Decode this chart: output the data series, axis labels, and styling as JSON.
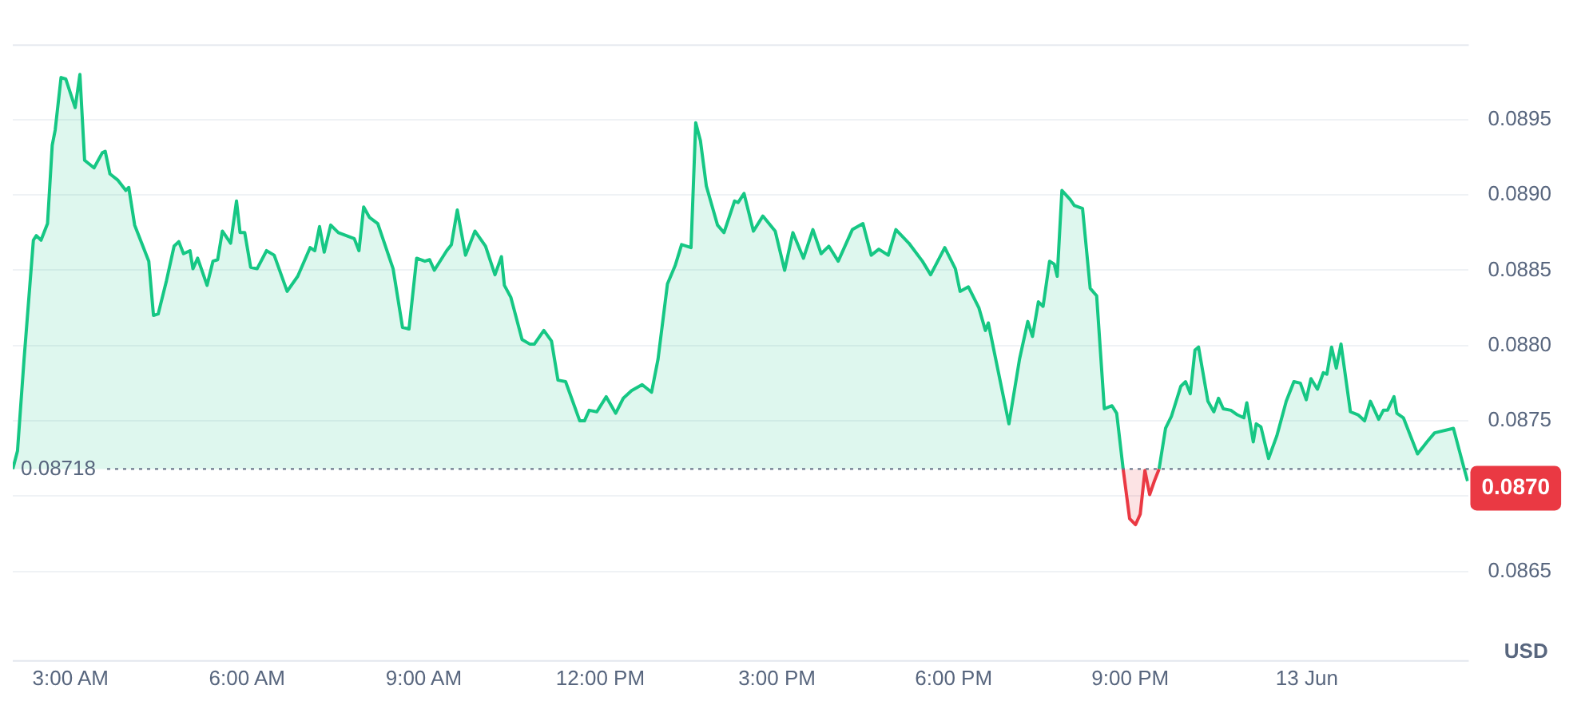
{
  "chart_data": {
    "type": "area",
    "ylabel": "USD",
    "x": [
      2.02,
      2.1,
      2.21,
      2.37,
      2.42,
      2.5,
      2.61,
      2.69,
      2.74,
      2.84,
      2.92,
      3.08,
      3.16,
      3.24,
      3.4,
      3.54,
      3.59,
      3.67,
      3.8,
      3.94,
      3.99,
      4.09,
      4.33,
      4.41,
      4.49,
      4.63,
      4.76,
      4.84,
      4.92,
      5.03,
      5.08,
      5.16,
      5.32,
      5.42,
      5.5,
      5.58,
      5.72,
      5.82,
      5.88,
      5.96,
      6.06,
      6.17,
      6.33,
      6.46,
      6.68,
      6.86,
      7.07,
      7.15,
      7.23,
      7.31,
      7.42,
      7.55,
      7.82,
      7.9,
      7.98,
      8.08,
      8.22,
      8.48,
      8.64,
      8.75,
      8.88,
      9.02,
      9.1,
      9.18,
      9.39,
      9.47,
      9.57,
      9.71,
      9.87,
      10.05,
      10.21,
      10.32,
      10.37,
      10.48,
      10.67,
      10.8,
      10.88,
      11.04,
      11.17,
      11.28,
      11.41,
      11.65,
      11.73,
      11.81,
      11.94,
      12.1,
      12.26,
      12.39,
      12.53,
      12.71,
      12.87,
      12.98,
      13.14,
      13.27,
      13.38,
      13.54,
      13.62,
      13.7,
      13.8,
      13.99,
      14.1,
      14.28,
      14.34,
      14.44,
      14.6,
      14.76,
      14.97,
      15.13,
      15.27,
      15.45,
      15.61,
      15.75,
      15.88,
      16.04,
      16.28,
      16.46,
      16.6,
      16.73,
      16.89,
      17.02,
      17.24,
      17.47,
      17.61,
      17.85,
      18.03,
      18.11,
      18.25,
      18.43,
      18.54,
      18.59,
      18.94,
      19.12,
      19.26,
      19.34,
      19.44,
      19.52,
      19.63,
      19.71,
      19.76,
      19.84,
      19.98,
      20.05,
      20.19,
      20.32,
      20.43,
      20.56,
      20.69,
      20.77,
      20.88,
      20.99,
      21.09,
      21.17,
      21.25,
      21.33,
      21.41,
      21.49,
      21.6,
      21.7,
      21.86,
      21.94,
      22.02,
      22.1,
      22.16,
      22.32,
      22.42,
      22.5,
      22.58,
      22.71,
      22.82,
      22.93,
      22.98,
      23.09,
      23.14,
      23.22,
      23.35,
      23.49,
      23.65,
      23.78,
      23.89,
      23.99,
      24.07,
      24.18,
      24.28,
      24.34,
      24.42,
      24.5,
      24.58,
      24.74,
      24.87,
      24.98,
      25.08,
      25.22,
      25.3,
      25.37,
      25.48,
      25.53,
      25.64,
      25.88,
      26.04,
      26.17,
      26.49,
      26.68,
      26.73
    ],
    "series": [
      {
        "color": "#16c784",
        "values": [
          0.08718,
          0.0873,
          0.0879,
          0.0887,
          0.08873,
          0.0887,
          0.08881,
          0.08933,
          0.08943,
          0.08978,
          0.08977,
          0.08958,
          0.0898,
          0.08923,
          0.08918,
          0.08928,
          0.08929,
          0.08914,
          0.0891,
          0.08903,
          0.08905,
          0.0888,
          0.08856,
          0.0882,
          0.08821,
          0.08843,
          0.08866,
          0.08869,
          0.08861,
          0.08863,
          0.08851,
          0.08858,
          0.0884,
          0.08856,
          0.08857,
          0.08876,
          0.08868,
          0.08896,
          0.08875,
          0.08875,
          0.08852,
          0.08851,
          0.08863,
          0.0886,
          0.08836,
          0.08846,
          0.08865,
          0.08863,
          0.08879,
          0.08862,
          0.0888,
          0.08875,
          0.08871,
          0.08863,
          0.08892,
          0.08885,
          0.08881,
          0.08851,
          0.08812,
          0.08811,
          0.08858,
          0.08856,
          0.08857,
          0.0885,
          0.08863,
          0.08867,
          0.0889,
          0.0886,
          0.08876,
          0.08866,
          0.08847,
          0.08859,
          0.0884,
          0.08832,
          0.08804,
          0.08801,
          0.08801,
          0.0881,
          0.08803,
          0.08777,
          0.08776,
          0.0875,
          0.0875,
          0.08757,
          0.08756,
          0.08766,
          0.08755,
          0.08765,
          0.0877,
          0.08774,
          0.08769,
          0.08791,
          0.08841,
          0.08853,
          0.08867,
          0.08865,
          0.08948,
          0.08936,
          0.08906,
          0.0888,
          0.08875,
          0.08896,
          0.08895,
          0.08901,
          0.08876,
          0.08886,
          0.08876,
          0.0885,
          0.08875,
          0.08858,
          0.08877,
          0.08861,
          0.08866,
          0.08856,
          0.08877,
          0.08881,
          0.0886,
          0.08864,
          0.0886,
          0.08877,
          0.08868,
          0.08856,
          0.08847,
          0.08865,
          0.08851,
          0.08836,
          0.08839,
          0.08825,
          0.0881,
          0.08815,
          0.08748,
          0.08791,
          0.08816,
          0.08806,
          0.08829,
          0.08826,
          0.08856,
          0.08854,
          0.08846,
          0.08903,
          0.08897,
          0.08893,
          0.08891,
          0.08838,
          0.08833,
          0.08758,
          0.0876,
          0.08755,
          0.08718,
          null,
          null,
          null,
          null,
          null,
          null,
          0.08718,
          0.08745,
          0.08753,
          0.08773,
          0.08776,
          0.08768,
          0.08797,
          0.08799,
          0.08763,
          0.08756,
          0.08765,
          0.08758,
          0.08757,
          0.08754,
          0.08752,
          0.08762,
          0.08736,
          0.08748,
          0.08746,
          0.08725,
          0.0874,
          0.08763,
          0.08776,
          0.08775,
          0.08764,
          0.08778,
          0.08771,
          0.08782,
          0.08781,
          0.08799,
          0.08785,
          0.08801,
          0.08756,
          0.08754,
          0.0875,
          0.08763,
          0.08751,
          0.08757,
          0.08757,
          0.08766,
          0.08755,
          0.08752,
          0.08728,
          0.08736,
          0.08742,
          0.08745,
          0.08717,
          0.0871
        ]
      },
      {
        "color": "#ea3943",
        "values": [
          null,
          null,
          null,
          null,
          null,
          null,
          null,
          null,
          null,
          null,
          null,
          null,
          null,
          null,
          null,
          null,
          null,
          null,
          null,
          null,
          null,
          null,
          null,
          null,
          null,
          null,
          null,
          null,
          null,
          null,
          null,
          null,
          null,
          null,
          null,
          null,
          null,
          null,
          null,
          null,
          null,
          null,
          null,
          null,
          null,
          null,
          null,
          null,
          null,
          null,
          null,
          null,
          null,
          null,
          null,
          null,
          null,
          null,
          null,
          null,
          null,
          null,
          null,
          null,
          null,
          null,
          null,
          null,
          null,
          null,
          null,
          null,
          null,
          null,
          null,
          null,
          null,
          null,
          null,
          null,
          null,
          null,
          null,
          null,
          null,
          null,
          null,
          null,
          null,
          null,
          null,
          null,
          null,
          null,
          null,
          null,
          null,
          null,
          null,
          null,
          null,
          null,
          null,
          null,
          null,
          null,
          null,
          null,
          null,
          null,
          null,
          null,
          null,
          null,
          null,
          null,
          null,
          null,
          null,
          null,
          null,
          null,
          null,
          null,
          null,
          null,
          null,
          null,
          null,
          null,
          null,
          null,
          null,
          null,
          null,
          null,
          null,
          null,
          null,
          null,
          null,
          null,
          null,
          null,
          null,
          null,
          null,
          null,
          0.08718,
          0.08685,
          0.08681,
          0.08688,
          0.08717,
          0.08701,
          0.0871,
          0.08718,
          null,
          null,
          null,
          null,
          null,
          null,
          null,
          null,
          null,
          null,
          null,
          null,
          null,
          null,
          null,
          null,
          null,
          null,
          null,
          null,
          null,
          null,
          null,
          null,
          null,
          null,
          null,
          null,
          null,
          null,
          null,
          null,
          null,
          null,
          null,
          null,
          null,
          null,
          null,
          null,
          null,
          null,
          null,
          null,
          null,
          null,
          null
        ]
      }
    ],
    "xlim": [
      2.02,
      26.75
    ],
    "xticks": [
      {
        "value": 3,
        "label": "3:00 AM"
      },
      {
        "value": 6,
        "label": "6:00 AM"
      },
      {
        "value": 9,
        "label": "9:00 AM"
      },
      {
        "value": 12,
        "label": "12:00 PM"
      },
      {
        "value": 15,
        "label": "3:00 PM"
      },
      {
        "value": 18,
        "label": "6:00 PM"
      },
      {
        "value": 21,
        "label": "9:00 PM"
      },
      {
        "value": 24,
        "label": "13 Jun"
      }
    ],
    "ylim": [
      0.0859,
      0.09
    ],
    "yticks": [
      {
        "value": 0.0865,
        "label": "0.0865"
      },
      {
        "value": 0.087,
        "label": null
      },
      {
        "value": 0.0875,
        "label": "0.0875"
      },
      {
        "value": 0.088,
        "label": "0.0880"
      },
      {
        "value": 0.0885,
        "label": "0.0885"
      },
      {
        "value": 0.089,
        "label": "0.0890"
      },
      {
        "value": 0.0895,
        "label": "0.0895"
      }
    ],
    "ref_lines": [
      {
        "axis": "y",
        "value": 0.08718,
        "label": "0.08718",
        "line_style": "dotted"
      }
    ],
    "annotations": [
      "0.0870"
    ],
    "grid": "y",
    "legend": false,
    "marker": "none",
    "line_style": "solid"
  }
}
